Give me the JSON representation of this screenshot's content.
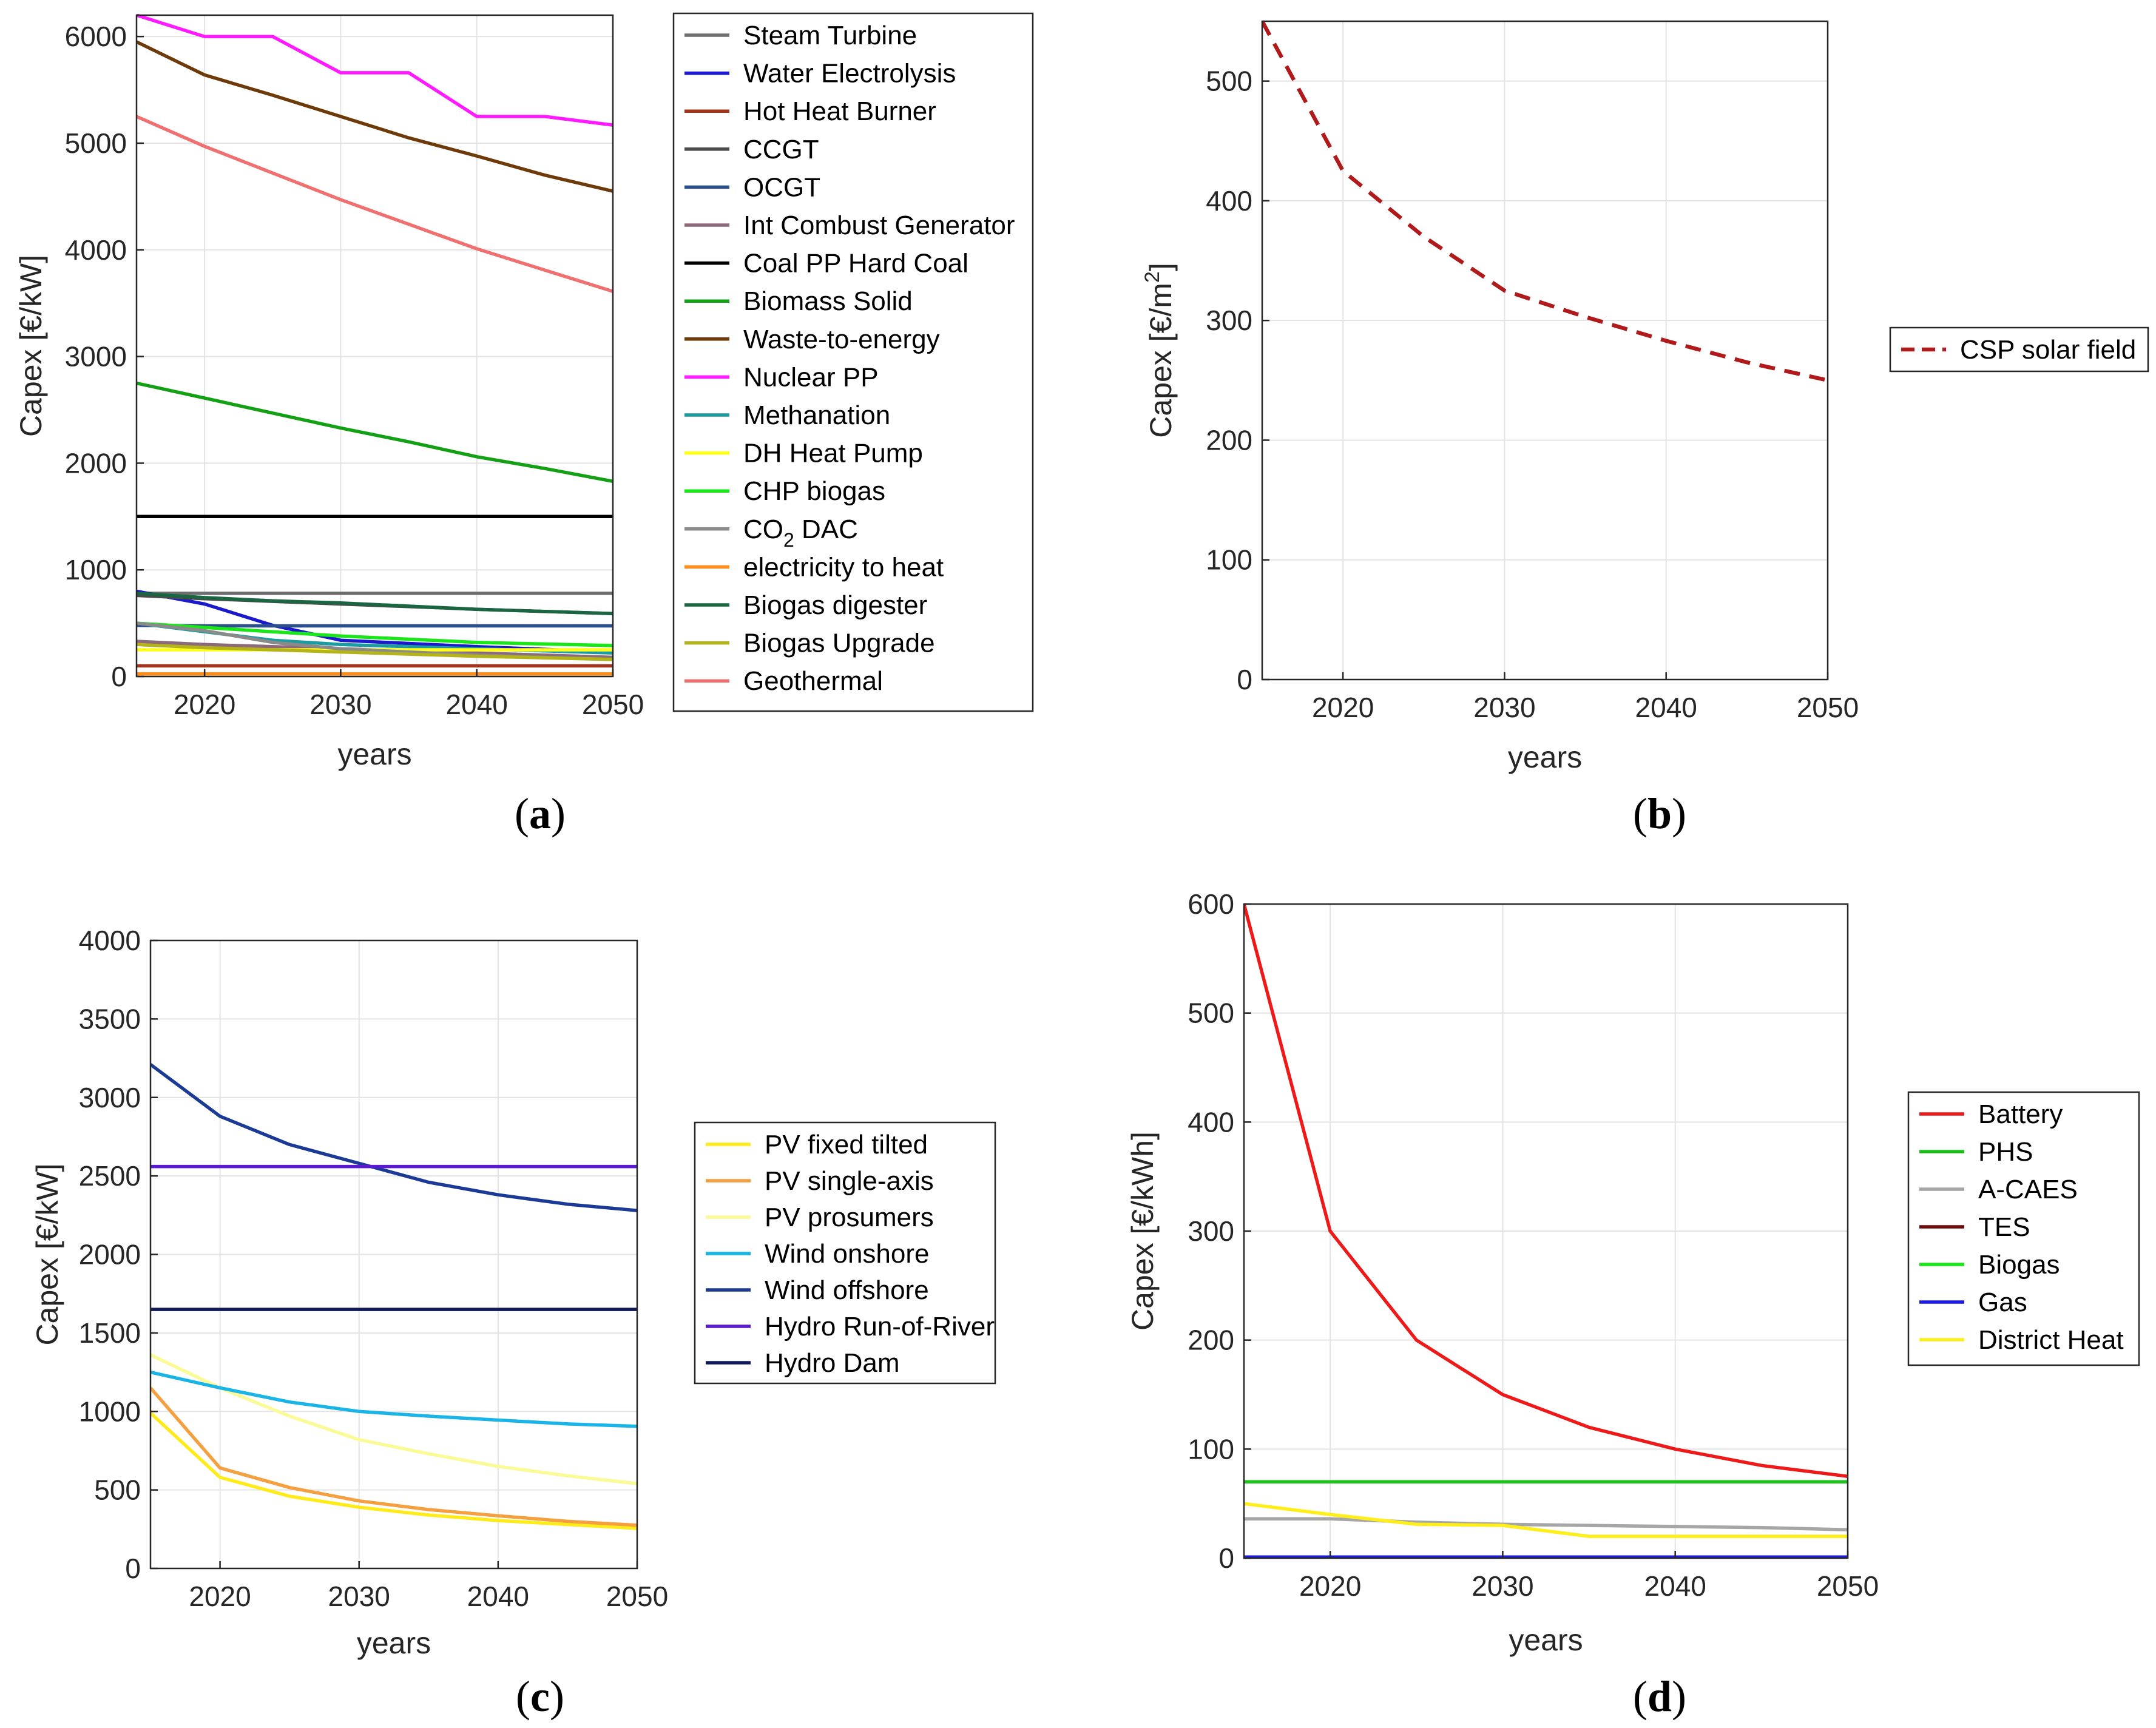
{
  "panels": [
    {
      "id": "a",
      "label": "(a)",
      "letter": "a"
    },
    {
      "id": "b",
      "label": "(b)",
      "letter": "b"
    },
    {
      "id": "c",
      "label": "(c)",
      "letter": "c"
    },
    {
      "id": "d",
      "label": "(d)",
      "letter": "d"
    }
  ],
  "chart_data": [
    {
      "id": "a",
      "type": "line",
      "xlabel": "years",
      "ylabel": "Capex [€/kW]",
      "xlim": [
        2015,
        2050
      ],
      "ylim": [
        0,
        6200
      ],
      "xticks": [
        2020,
        2030,
        2040,
        2050
      ],
      "yticks": [
        0,
        1000,
        2000,
        3000,
        4000,
        5000,
        6000
      ],
      "grid": true,
      "legend_position": "right",
      "x": [
        2015,
        2020,
        2025,
        2030,
        2035,
        2040,
        2045,
        2050
      ],
      "series": [
        {
          "name": "Steam Turbine",
          "color": "#6e6e6e",
          "values": [
            780,
            780,
            780,
            780,
            780,
            780,
            780,
            780
          ]
        },
        {
          "name": "Water Electrolysis",
          "color": "#1a1acc",
          "values": [
            800,
            680,
            480,
            340,
            310,
            280,
            255,
            230
          ]
        },
        {
          "name": "Hot Heat Burner",
          "color": "#a0341c",
          "values": [
            100,
            100,
            100,
            100,
            100,
            100,
            100,
            100
          ]
        },
        {
          "name": "CCGT",
          "color": "#4a4a4a",
          "values": [
            760,
            730,
            705,
            680,
            655,
            630,
            610,
            590
          ]
        },
        {
          "name": "OCGT",
          "color": "#2b4f8a",
          "values": [
            480,
            475,
            475,
            475,
            475,
            475,
            475,
            475
          ]
        },
        {
          "name": "Int Combust Generator",
          "color": "#8c6a7a",
          "values": [
            330,
            300,
            280,
            260,
            240,
            220,
            200,
            180
          ]
        },
        {
          "name": "Coal PP Hard Coal",
          "color": "#000000",
          "values": [
            1500,
            1500,
            1500,
            1500,
            1500,
            1500,
            1500,
            1500
          ]
        },
        {
          "name": "Biomass Solid",
          "color": "#14a014",
          "values": [
            2750,
            2610,
            2470,
            2330,
            2200,
            2060,
            1950,
            1830
          ]
        },
        {
          "name": "Waste-to-energy",
          "color": "#6e3a0a",
          "values": [
            5950,
            5640,
            5450,
            5250,
            5050,
            4880,
            4700,
            4550
          ]
        },
        {
          "name": "Nuclear PP",
          "color": "#ff1aff",
          "values": [
            6200,
            6000,
            6000,
            5660,
            5660,
            5250,
            5250,
            5170
          ]
        },
        {
          "name": "Methanation",
          "color": "#1a9ca0",
          "values": [
            500,
            420,
            340,
            300,
            280,
            260,
            240,
            220
          ]
        },
        {
          "name": "DH Heat Pump",
          "color": "#ffff1a",
          "values": [
            250,
            250,
            250,
            250,
            250,
            250,
            250,
            250
          ]
        },
        {
          "name": "CHP biogas",
          "color": "#1ae61a",
          "values": [
            500,
            460,
            420,
            380,
            350,
            320,
            305,
            290
          ]
        },
        {
          "name": "CO2 DAC",
          "label_main": "CO",
          "label_sub": "2",
          "label_rest": " DAC",
          "color": "#8a8a8a",
          "values": [
            500,
            430,
            320,
            260,
            230,
            200,
            180,
            160
          ]
        },
        {
          "name": "electricity to heat",
          "color": "#ff8c1a",
          "values": [
            25,
            25,
            25,
            25,
            25,
            25,
            25,
            25
          ]
        },
        {
          "name": "Biogas digester",
          "color": "#1a6640",
          "values": [
            780,
            740,
            710,
            690,
            660,
            630,
            610,
            590
          ]
        },
        {
          "name": "Biogas Upgrade",
          "color": "#b4b41a",
          "values": [
            300,
            270,
            250,
            230,
            210,
            190,
            175,
            160
          ]
        },
        {
          "name": "Geothermal",
          "color": "#f07070",
          "values": [
            5250,
            4970,
            4720,
            4470,
            4240,
            4010,
            3810,
            3610
          ]
        }
      ]
    },
    {
      "id": "b",
      "type": "line",
      "xlabel": "years",
      "ylabel_main": "Capex [€/m",
      "ylabel_sup": "2",
      "ylabel_end": "]",
      "xlim": [
        2015,
        2050
      ],
      "ylim": [
        0,
        550
      ],
      "xticks": [
        2020,
        2030,
        2040,
        2050
      ],
      "yticks": [
        0,
        100,
        200,
        300,
        400,
        500
      ],
      "grid": true,
      "legend_position": "right",
      "x": [
        2015,
        2020,
        2025,
        2030,
        2035,
        2040,
        2045,
        2050
      ],
      "series": [
        {
          "name": "CSP solar field",
          "color": "#b01a1a",
          "dashed": true,
          "values": [
            550,
            425,
            370,
            325,
            303,
            283,
            265,
            250
          ]
        }
      ]
    },
    {
      "id": "c",
      "type": "line",
      "xlabel": "years",
      "ylabel": "Capex [€/kW]",
      "xlim": [
        2015,
        2050
      ],
      "ylim": [
        0,
        4000
      ],
      "xticks": [
        2020,
        2030,
        2040,
        2050
      ],
      "yticks": [
        0,
        500,
        1000,
        1500,
        2000,
        2500,
        3000,
        3500,
        4000
      ],
      "grid": true,
      "legend_position": "right",
      "x": [
        2015,
        2020,
        2025,
        2030,
        2035,
        2040,
        2045,
        2050
      ],
      "series": [
        {
          "name": "PV fixed tilted",
          "color": "#ffea1a",
          "values": [
            990,
            580,
            460,
            390,
            340,
            305,
            280,
            255
          ]
        },
        {
          "name": "PV single-axis",
          "color": "#f5a040",
          "values": [
            1150,
            640,
            515,
            430,
            375,
            335,
            300,
            275
          ]
        },
        {
          "name": "PV prosumers",
          "color": "#fafa96",
          "values": [
            1360,
            1150,
            970,
            820,
            730,
            650,
            590,
            540
          ]
        },
        {
          "name": "Wind onshore",
          "color": "#1ab4e6",
          "values": [
            1250,
            1150,
            1060,
            1000,
            970,
            945,
            920,
            905
          ]
        },
        {
          "name": "Wind offshore",
          "color": "#1a3a96",
          "values": [
            3210,
            2880,
            2700,
            2580,
            2460,
            2380,
            2320,
            2280
          ]
        },
        {
          "name": "Hydro Run-of-River",
          "color": "#5a1ad2",
          "values": [
            2560,
            2560,
            2560,
            2560,
            2560,
            2560,
            2560,
            2560
          ]
        },
        {
          "name": "Hydro Dam",
          "color": "#101a5a",
          "values": [
            1650,
            1650,
            1650,
            1650,
            1650,
            1650,
            1650,
            1650
          ]
        }
      ]
    },
    {
      "id": "d",
      "type": "line",
      "xlabel": "years",
      "ylabel": "Capex [€/kWh]",
      "xlim": [
        2015,
        2050
      ],
      "ylim": [
        0,
        600
      ],
      "xticks": [
        2020,
        2030,
        2040,
        2050
      ],
      "yticks": [
        0,
        100,
        200,
        300,
        400,
        500,
        600
      ],
      "grid": true,
      "legend_position": "right",
      "x": [
        2015,
        2020,
        2025,
        2030,
        2035,
        2040,
        2045,
        2050
      ],
      "series": [
        {
          "name": "Battery",
          "color": "#ee1a1a",
          "values": [
            600,
            300,
            200,
            150,
            120,
            100,
            85,
            75
          ]
        },
        {
          "name": "PHS",
          "color": "#1ac21a",
          "values": [
            70,
            70,
            70,
            70,
            70,
            70,
            70,
            70
          ]
        },
        {
          "name": "A-CAES",
          "color": "#a6a6a6",
          "values": [
            36,
            36,
            33,
            31,
            30,
            29,
            28,
            26
          ]
        },
        {
          "name": "TES",
          "color": "#6e0a0a",
          "values": [
            1,
            1,
            1,
            1,
            1,
            1,
            1,
            1
          ]
        },
        {
          "name": "Biogas",
          "color": "#1ae61a",
          "values": [
            1,
            1,
            1,
            1,
            1,
            1,
            1,
            1
          ]
        },
        {
          "name": "Gas",
          "color": "#1a1ae6",
          "values": [
            1,
            1,
            1,
            1,
            1,
            1,
            1,
            1
          ]
        },
        {
          "name": "District Heat",
          "color": "#ffee1a",
          "values": [
            50,
            40,
            31,
            30,
            20,
            20,
            20,
            20
          ]
        }
      ]
    }
  ]
}
